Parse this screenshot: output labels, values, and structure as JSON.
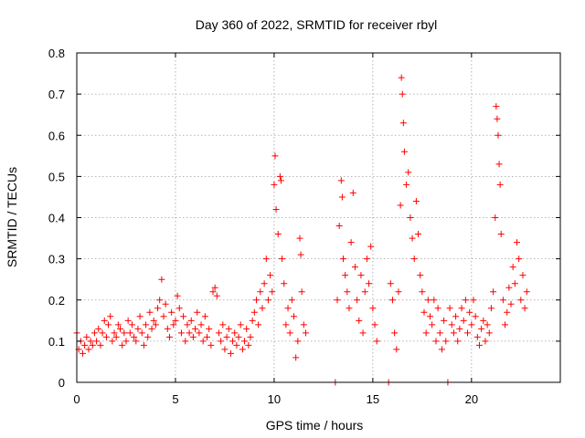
{
  "chart_data": {
    "type": "scatter",
    "title": "Day 360 of 2022, SRMTID for receiver rbyl",
    "xlabel": "GPS time / hours",
    "ylabel": "SRMTID / TECUs",
    "xlim": [
      0,
      24.5
    ],
    "ylim": [
      0,
      0.8
    ],
    "xticks": [
      0,
      5,
      10,
      15,
      20
    ],
    "xtick_labels": [
      "0",
      "5",
      "10",
      "15",
      "20"
    ],
    "yticks": [
      0,
      0.1,
      0.2,
      0.3,
      0.4,
      0.5,
      0.6,
      0.7,
      0.8
    ],
    "ytick_labels": [
      "0",
      "0.1",
      "0.2",
      "0.3",
      "0.4",
      "0.5",
      "0.6",
      "0.7",
      "0.8"
    ],
    "grid": true,
    "marker": "plus",
    "color": "#ff0000",
    "series": [
      {
        "name": "SRMTID",
        "points": [
          [
            0.0,
            0.12
          ],
          [
            0.1,
            0.08
          ],
          [
            0.2,
            0.1
          ],
          [
            0.3,
            0.07
          ],
          [
            0.4,
            0.09
          ],
          [
            0.5,
            0.11
          ],
          [
            0.6,
            0.08
          ],
          [
            0.7,
            0.1
          ],
          [
            0.8,
            0.09
          ],
          [
            0.9,
            0.12
          ],
          [
            1.0,
            0.1
          ],
          [
            1.1,
            0.13
          ],
          [
            1.2,
            0.09
          ],
          [
            1.3,
            0.12
          ],
          [
            1.4,
            0.15
          ],
          [
            1.5,
            0.11
          ],
          [
            1.6,
            0.14
          ],
          [
            1.7,
            0.16
          ],
          [
            1.8,
            0.1
          ],
          [
            1.9,
            0.12
          ],
          [
            2.0,
            0.11
          ],
          [
            2.1,
            0.14
          ],
          [
            2.2,
            0.13
          ],
          [
            2.3,
            0.09
          ],
          [
            2.4,
            0.12
          ],
          [
            2.5,
            0.1
          ],
          [
            2.6,
            0.15
          ],
          [
            2.7,
            0.12
          ],
          [
            2.8,
            0.14
          ],
          [
            2.9,
            0.11
          ],
          [
            3.0,
            0.1
          ],
          [
            3.1,
            0.13
          ],
          [
            3.2,
            0.16
          ],
          [
            3.3,
            0.12
          ],
          [
            3.4,
            0.09
          ],
          [
            3.5,
            0.14
          ],
          [
            3.6,
            0.11
          ],
          [
            3.7,
            0.17
          ],
          [
            3.8,
            0.13
          ],
          [
            3.9,
            0.15
          ],
          [
            4.0,
            0.14
          ],
          [
            4.1,
            0.18
          ],
          [
            4.2,
            0.2
          ],
          [
            4.3,
            0.25
          ],
          [
            4.4,
            0.16
          ],
          [
            4.5,
            0.19
          ],
          [
            4.6,
            0.13
          ],
          [
            4.7,
            0.11
          ],
          [
            4.8,
            0.17
          ],
          [
            4.9,
            0.14
          ],
          [
            5.0,
            0.15
          ],
          [
            5.1,
            0.21
          ],
          [
            5.2,
            0.18
          ],
          [
            5.3,
            0.12
          ],
          [
            5.4,
            0.16
          ],
          [
            5.5,
            0.1
          ],
          [
            5.6,
            0.14
          ],
          [
            5.7,
            0.12
          ],
          [
            5.8,
            0.15
          ],
          [
            5.9,
            0.11
          ],
          [
            6.0,
            0.13
          ],
          [
            6.1,
            0.17
          ],
          [
            6.2,
            0.12
          ],
          [
            6.3,
            0.14
          ],
          [
            6.4,
            0.1
          ],
          [
            6.5,
            0.16
          ],
          [
            6.6,
            0.11
          ],
          [
            6.7,
            0.13
          ],
          [
            6.8,
            0.09
          ],
          [
            6.9,
            0.22
          ],
          [
            7.0,
            0.23
          ],
          [
            7.1,
            0.21
          ],
          [
            7.2,
            0.12
          ],
          [
            7.3,
            0.1
          ],
          [
            7.4,
            0.14
          ],
          [
            7.5,
            0.08
          ],
          [
            7.6,
            0.11
          ],
          [
            7.7,
            0.13
          ],
          [
            7.8,
            0.07
          ],
          [
            7.9,
            0.1
          ],
          [
            8.0,
            0.12
          ],
          [
            8.1,
            0.09
          ],
          [
            8.2,
            0.11
          ],
          [
            8.3,
            0.14
          ],
          [
            8.4,
            0.08
          ],
          [
            8.5,
            0.1
          ],
          [
            8.6,
            0.13
          ],
          [
            8.7,
            0.09
          ],
          [
            8.8,
            0.11
          ],
          [
            8.9,
            0.15
          ],
          [
            9.0,
            0.17
          ],
          [
            9.1,
            0.2
          ],
          [
            9.2,
            0.14
          ],
          [
            9.3,
            0.22
          ],
          [
            9.4,
            0.18
          ],
          [
            9.5,
            0.24
          ],
          [
            9.6,
            0.3
          ],
          [
            9.7,
            0.2
          ],
          [
            9.8,
            0.26
          ],
          [
            9.9,
            0.22
          ],
          [
            10.0,
            0.48
          ],
          [
            10.05,
            0.55
          ],
          [
            10.1,
            0.42
          ],
          [
            10.2,
            0.36
          ],
          [
            10.3,
            0.5
          ],
          [
            10.35,
            0.49
          ],
          [
            10.4,
            0.3
          ],
          [
            10.5,
            0.24
          ],
          [
            10.6,
            0.14
          ],
          [
            10.7,
            0.18
          ],
          [
            10.8,
            0.12
          ],
          [
            10.9,
            0.2
          ],
          [
            11.0,
            0.16
          ],
          [
            11.1,
            0.06
          ],
          [
            11.2,
            0.1
          ],
          [
            11.3,
            0.35
          ],
          [
            11.35,
            0.31
          ],
          [
            11.4,
            0.22
          ],
          [
            11.5,
            0.14
          ],
          [
            11.6,
            0.12
          ],
          [
            13.1,
            0.0
          ],
          [
            13.2,
            0.2
          ],
          [
            13.3,
            0.38
          ],
          [
            13.4,
            0.49
          ],
          [
            13.45,
            0.45
          ],
          [
            13.5,
            0.3
          ],
          [
            13.6,
            0.26
          ],
          [
            13.7,
            0.22
          ],
          [
            13.8,
            0.18
          ],
          [
            13.9,
            0.34
          ],
          [
            14.0,
            0.46
          ],
          [
            14.1,
            0.28
          ],
          [
            14.2,
            0.2
          ],
          [
            14.3,
            0.15
          ],
          [
            14.4,
            0.26
          ],
          [
            14.5,
            0.12
          ],
          [
            14.6,
            0.22
          ],
          [
            14.7,
            0.3
          ],
          [
            14.8,
            0.24
          ],
          [
            14.9,
            0.33
          ],
          [
            15.0,
            0.18
          ],
          [
            15.1,
            0.14
          ],
          [
            15.2,
            0.1
          ],
          [
            15.8,
            0.0
          ],
          [
            15.9,
            0.24
          ],
          [
            16.0,
            0.2
          ],
          [
            16.1,
            0.12
          ],
          [
            16.2,
            0.08
          ],
          [
            16.3,
            0.22
          ],
          [
            16.4,
            0.43
          ],
          [
            16.45,
            0.74
          ],
          [
            16.5,
            0.7
          ],
          [
            16.55,
            0.63
          ],
          [
            16.6,
            0.56
          ],
          [
            16.7,
            0.48
          ],
          [
            16.8,
            0.51
          ],
          [
            16.9,
            0.4
          ],
          [
            17.0,
            0.35
          ],
          [
            17.1,
            0.3
          ],
          [
            17.2,
            0.44
          ],
          [
            17.3,
            0.36
          ],
          [
            17.4,
            0.26
          ],
          [
            17.5,
            0.22
          ],
          [
            17.6,
            0.17
          ],
          [
            17.7,
            0.12
          ],
          [
            17.8,
            0.2
          ],
          [
            17.9,
            0.16
          ],
          [
            18.0,
            0.14
          ],
          [
            18.1,
            0.2
          ],
          [
            18.2,
            0.1
          ],
          [
            18.3,
            0.18
          ],
          [
            18.4,
            0.12
          ],
          [
            18.5,
            0.08
          ],
          [
            18.6,
            0.15
          ],
          [
            18.7,
            0.1
          ],
          [
            18.8,
            0.0
          ],
          [
            18.9,
            0.18
          ],
          [
            19.0,
            0.14
          ],
          [
            19.1,
            0.12
          ],
          [
            19.2,
            0.16
          ],
          [
            19.3,
            0.1
          ],
          [
            19.4,
            0.13
          ],
          [
            19.5,
            0.18
          ],
          [
            19.6,
            0.15
          ],
          [
            19.7,
            0.2
          ],
          [
            19.8,
            0.12
          ],
          [
            19.9,
            0.17
          ],
          [
            20.0,
            0.14
          ],
          [
            20.1,
            0.2
          ],
          [
            20.2,
            0.16
          ],
          [
            20.3,
            0.11
          ],
          [
            20.4,
            0.09
          ],
          [
            20.5,
            0.13
          ],
          [
            20.6,
            0.15
          ],
          [
            20.7,
            0.1
          ],
          [
            20.8,
            0.14
          ],
          [
            20.9,
            0.12
          ],
          [
            21.0,
            0.18
          ],
          [
            21.1,
            0.22
          ],
          [
            21.2,
            0.4
          ],
          [
            21.25,
            0.67
          ],
          [
            21.3,
            0.64
          ],
          [
            21.35,
            0.6
          ],
          [
            21.4,
            0.53
          ],
          [
            21.45,
            0.48
          ],
          [
            21.5,
            0.36
          ],
          [
            21.6,
            0.2
          ],
          [
            21.7,
            0.14
          ],
          [
            21.8,
            0.17
          ],
          [
            21.9,
            0.23
          ],
          [
            22.0,
            0.19
          ],
          [
            22.1,
            0.28
          ],
          [
            22.2,
            0.24
          ],
          [
            22.3,
            0.34
          ],
          [
            22.4,
            0.3
          ],
          [
            22.5,
            0.2
          ],
          [
            22.6,
            0.26
          ],
          [
            22.7,
            0.18
          ],
          [
            22.8,
            0.22
          ]
        ]
      }
    ]
  }
}
